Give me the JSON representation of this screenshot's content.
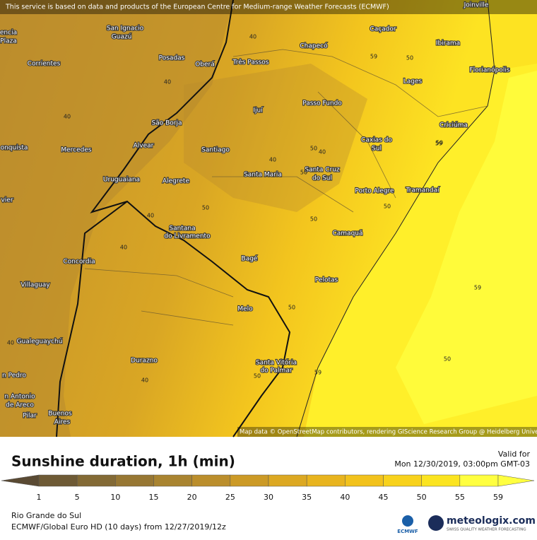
{
  "banner": "This service is based on data and products of the European Centre for Medium-range Weather Forecasts (ECMWF)",
  "attribution": "Map data © OpenStreetMap contributors, rendering GIScience Research Group @ Heidelberg University",
  "cities": [
    "Joinville",
    "San Ignacio",
    "Guazú",
    "encia",
    "Plaza",
    "Caçador",
    "Chapecó",
    "Ibirama",
    "Posadas",
    "Oberá",
    "Três Passos",
    "Corrientes",
    "Florianópolis",
    "Lages",
    "Passo Fundo",
    "Ijuí",
    "São Borja",
    "Criciúma",
    "Caxias do",
    "Sul",
    "Alvear",
    "onquista",
    "Mercedes",
    "Santiago",
    "Santa Cruz",
    "do Sul",
    "Santa Maria",
    "Uruguaiana",
    "Alegrete",
    "Porto Alegre",
    "Tramandaí",
    "vier",
    "Santana",
    "do Livramento",
    "Camaquã",
    "Bagé",
    "Concordia",
    "Pelotas",
    "Villaguay",
    "Melo",
    "Gualeguaychú",
    "Durazno",
    "Santa Vitória",
    "do Palmar",
    "n Pedro",
    "n Antonio",
    "de Areco",
    "Pilar",
    "Buenos",
    "Aires"
  ],
  "contours": [
    40,
    40,
    40,
    40,
    40,
    40,
    40,
    40,
    40,
    50,
    50,
    50,
    50,
    50,
    50,
    50,
    50,
    50,
    50,
    59,
    59,
    59,
    59
  ],
  "legend": {
    "title": "Sunshine duration, 1h (min)",
    "ticks": [
      1,
      5,
      10,
      15,
      20,
      25,
      30,
      35,
      40,
      45,
      50,
      55,
      59
    ],
    "colors": [
      "#5a4a33",
      "#6e5a35",
      "#836a35",
      "#977733",
      "#a98430",
      "#bb8e2c",
      "#cc9a26",
      "#dca822",
      "#e8b41e",
      "#f2c21c",
      "#f8d21c",
      "#fbe420",
      "#ffff40"
    ]
  },
  "valid": {
    "label": "Valid for",
    "time": "Mon 12/30/2019, 03:00pm GMT-03"
  },
  "footer": {
    "region": "Rio Grande do Sul",
    "model": "ECMWF/Global Euro HD (10 days)  from  12/27/2019/12z"
  },
  "logos": {
    "ecmwf": "ECMWF",
    "brand": "meteologix.com",
    "tagline": "SWISS QUALITY WEATHER FORECASTING"
  }
}
